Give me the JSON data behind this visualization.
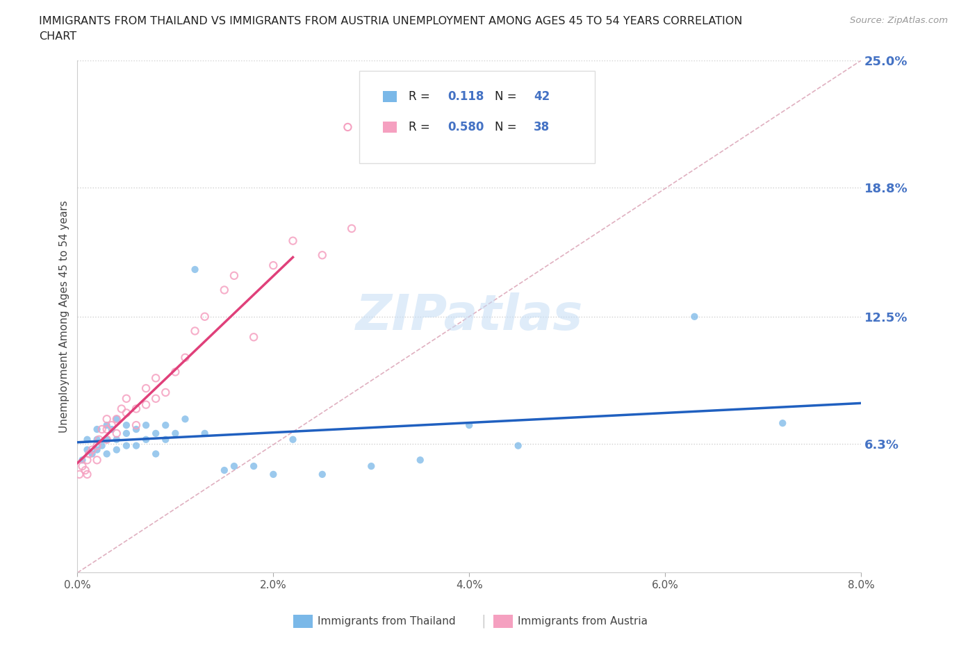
{
  "title_line1": "IMMIGRANTS FROM THAILAND VS IMMIGRANTS FROM AUSTRIA UNEMPLOYMENT AMONG AGES 45 TO 54 YEARS CORRELATION",
  "title_line2": "CHART",
  "source": "Source: ZipAtlas.com",
  "ylabel": "Unemployment Among Ages 45 to 54 years",
  "xlim": [
    0.0,
    0.08
  ],
  "ylim": [
    0.0,
    0.25
  ],
  "xticks": [
    0.0,
    0.02,
    0.04,
    0.06,
    0.08
  ],
  "xticklabels": [
    "0.0%",
    "2.0%",
    "4.0%",
    "6.0%",
    "8.0%"
  ],
  "yticks_right": [
    0.063,
    0.125,
    0.188,
    0.25
  ],
  "yticklabels_right": [
    "6.3%",
    "12.5%",
    "18.8%",
    "25.0%"
  ],
  "color_thailand": "#7ab8e8",
  "color_austria": "#f5a0c0",
  "color_thailand_line": "#2060c0",
  "color_austria_line": "#e0407a",
  "color_ref_line": "#e0b0c0",
  "color_text_blue": "#4472c4",
  "legend_R_thailand": "0.118",
  "legend_N_thailand": "42",
  "legend_R_austria": "0.580",
  "legend_N_austria": "38",
  "thailand_x": [
    0.0005,
    0.001,
    0.001,
    0.0015,
    0.002,
    0.002,
    0.002,
    0.0025,
    0.003,
    0.003,
    0.003,
    0.0035,
    0.004,
    0.004,
    0.004,
    0.005,
    0.005,
    0.005,
    0.006,
    0.006,
    0.007,
    0.007,
    0.008,
    0.008,
    0.009,
    0.009,
    0.01,
    0.011,
    0.012,
    0.013,
    0.015,
    0.016,
    0.018,
    0.02,
    0.022,
    0.025,
    0.03,
    0.035,
    0.04,
    0.045,
    0.063,
    0.072
  ],
  "thailand_y": [
    0.055,
    0.06,
    0.065,
    0.058,
    0.06,
    0.065,
    0.07,
    0.062,
    0.058,
    0.065,
    0.072,
    0.07,
    0.06,
    0.065,
    0.075,
    0.062,
    0.068,
    0.072,
    0.062,
    0.07,
    0.065,
    0.072,
    0.058,
    0.068,
    0.065,
    0.072,
    0.068,
    0.075,
    0.148,
    0.068,
    0.05,
    0.052,
    0.052,
    0.048,
    0.065,
    0.048,
    0.052,
    0.055,
    0.072,
    0.062,
    0.125,
    0.073
  ],
  "austria_x": [
    0.0002,
    0.0005,
    0.0008,
    0.001,
    0.001,
    0.0012,
    0.0015,
    0.002,
    0.002,
    0.0022,
    0.0025,
    0.003,
    0.003,
    0.003,
    0.0035,
    0.004,
    0.004,
    0.0045,
    0.005,
    0.005,
    0.006,
    0.006,
    0.007,
    0.007,
    0.008,
    0.008,
    0.009,
    0.01,
    0.011,
    0.012,
    0.013,
    0.015,
    0.016,
    0.018,
    0.02,
    0.022,
    0.025,
    0.028
  ],
  "austria_y": [
    0.048,
    0.052,
    0.05,
    0.048,
    0.055,
    0.058,
    0.06,
    0.055,
    0.062,
    0.065,
    0.07,
    0.065,
    0.07,
    0.075,
    0.072,
    0.068,
    0.075,
    0.08,
    0.078,
    0.085,
    0.072,
    0.08,
    0.082,
    0.09,
    0.085,
    0.095,
    0.088,
    0.098,
    0.105,
    0.118,
    0.125,
    0.138,
    0.145,
    0.115,
    0.15,
    0.162,
    0.155,
    0.168
  ],
  "watermark": "ZIPatlas",
  "background_color": "#ffffff",
  "grid_color": "#d0d0d0"
}
